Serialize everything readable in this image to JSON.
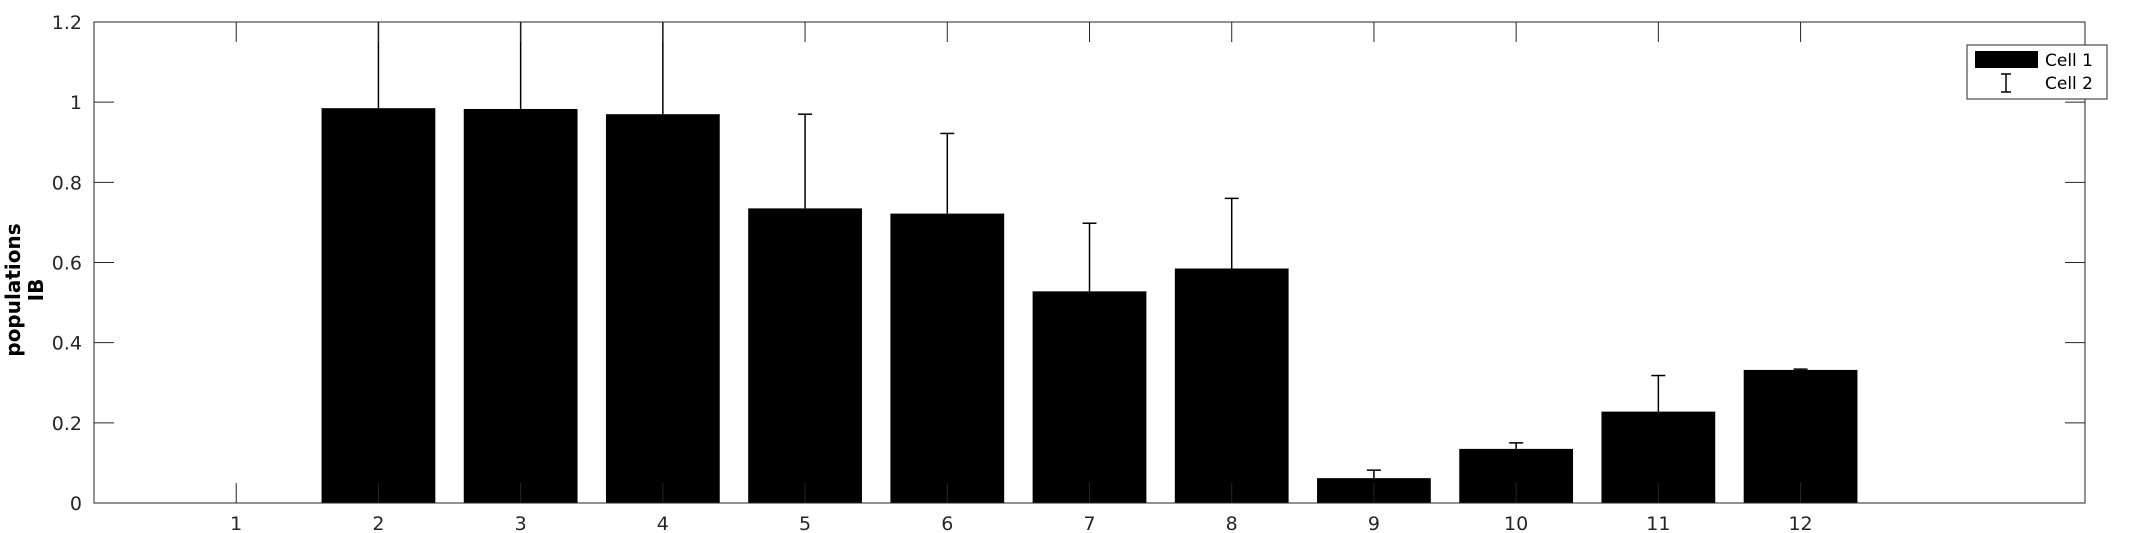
{
  "chart_data": {
    "type": "bar",
    "categories": [
      "1",
      "2",
      "3",
      "4",
      "5",
      "6",
      "7",
      "8",
      "9",
      "10",
      "11",
      "12"
    ],
    "series": [
      {
        "name": "Cell 1",
        "values": [
          0,
          0.985,
          0.983,
          0.97,
          0.735,
          0.722,
          0.528,
          0.585,
          0.062,
          0.135,
          0.228,
          0.332
        ]
      }
    ],
    "error_bars": {
      "name": "Cell 2",
      "upper": [
        0,
        0.38,
        0.5,
        0.42,
        0.235,
        0.2,
        0.17,
        0.175,
        0.02,
        0.015,
        0.09,
        0.002
      ]
    },
    "ylabel_lines": [
      "populations",
      "IB"
    ],
    "xlabel": "",
    "ylim": [
      0,
      1.2
    ],
    "yticks": [
      "0",
      "0.2",
      "0.4",
      "0.6",
      "0.8",
      "1",
      "1.2"
    ],
    "grid": false,
    "legend_position": "top-right",
    "colors": {
      "bar": "#000000",
      "axis": "#262626"
    }
  }
}
